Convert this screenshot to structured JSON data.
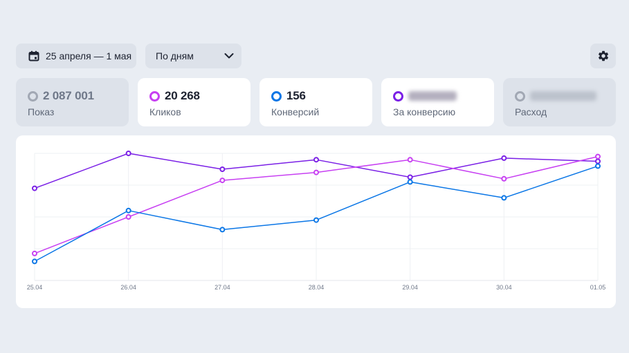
{
  "toolbar": {
    "date_range": "25 апреля — 1 мая",
    "period": "По дням",
    "calendar_icon": "calendar-icon",
    "chevron_icon": "chevron-down-icon",
    "settings_icon": "gear-icon"
  },
  "metrics": [
    {
      "value": "2 087 001",
      "label": "Показ",
      "color": "#a2a8b4",
      "active": false
    },
    {
      "value": "20 268",
      "label": "Кликов",
      "color": "#c73ff2",
      "active": true
    },
    {
      "value": "156",
      "label": "Конверсий",
      "color": "#0a76e6",
      "active": true
    },
    {
      "value": "",
      "label": "За конверсию",
      "color": "#7a1fe6",
      "active": true,
      "blurred": true
    },
    {
      "value": "",
      "label": "Расход",
      "color": "#a2a8b4",
      "active": false,
      "blurred": true
    }
  ],
  "chart_data": {
    "type": "line",
    "x": [
      "25.04",
      "26.04",
      "27.04",
      "28.04",
      "29.04",
      "30.04",
      "01.05"
    ],
    "ylim": [
      0,
      4
    ],
    "grid": true,
    "series": [
      {
        "color": "#7a1fe6",
        "values": [
          2.9,
          4.0,
          3.5,
          3.8,
          3.25,
          3.85,
          3.75
        ]
      },
      {
        "color": "#c73ff2",
        "values": [
          0.85,
          2.0,
          3.15,
          3.4,
          3.8,
          3.2,
          3.9
        ]
      },
      {
        "color": "#0a76e6",
        "values": [
          0.6,
          2.2,
          1.6,
          1.9,
          3.1,
          2.6,
          3.6
        ]
      }
    ]
  }
}
